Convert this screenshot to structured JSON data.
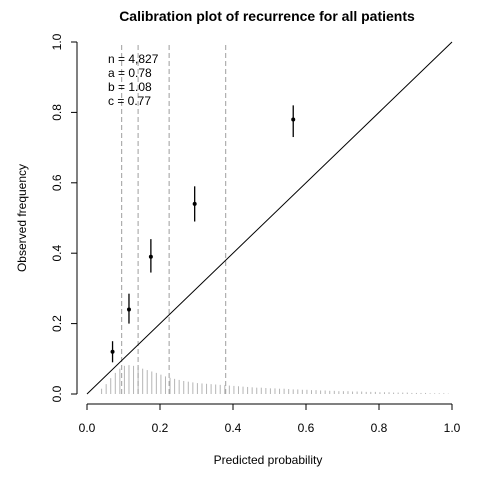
{
  "chart_data": {
    "type": "scatter",
    "title": "Calibration plot of recurrence for all patients",
    "xlabel": "Predicted probability",
    "ylabel": "Observed frequency",
    "xlim": [
      0,
      1
    ],
    "ylim": [
      0,
      1
    ],
    "x_ticks": [
      0.0,
      0.2,
      0.4,
      0.6,
      0.8,
      1.0
    ],
    "y_ticks": [
      0.0,
      0.2,
      0.4,
      0.6,
      0.8,
      1.0
    ],
    "x_tick_labels": [
      "0.0",
      "0.2",
      "0.4",
      "0.6",
      "0.8",
      "1.0"
    ],
    "y_tick_labels": [
      "0.0",
      "0.2",
      "0.4",
      "0.6",
      "0.8",
      "1.0"
    ],
    "annotations": [
      "n = 4,827",
      "a = 0.78",
      "b = 1.08",
      "c = 0.77"
    ],
    "points": [
      {
        "x": 0.07,
        "y": 0.12,
        "lo": 0.09,
        "hi": 0.15
      },
      {
        "x": 0.115,
        "y": 0.24,
        "lo": 0.2,
        "hi": 0.285
      },
      {
        "x": 0.175,
        "y": 0.39,
        "lo": 0.345,
        "hi": 0.44
      },
      {
        "x": 0.295,
        "y": 0.54,
        "lo": 0.49,
        "hi": 0.59
      },
      {
        "x": 0.565,
        "y": 0.78,
        "lo": 0.73,
        "hi": 0.82
      }
    ],
    "reference_line": {
      "from": [
        0,
        0
      ],
      "to": [
        1,
        1
      ]
    },
    "cutoff_lines_x": [
      0.095,
      0.14,
      0.225,
      0.38
    ],
    "histogram": {
      "bin_width": 0.0125,
      "x_start": 0.04,
      "heights": [
        0.015,
        0.028,
        0.045,
        0.06,
        0.072,
        0.08,
        0.082,
        0.08,
        0.076,
        0.072,
        0.068,
        0.064,
        0.06,
        0.055,
        0.05,
        0.046,
        0.043,
        0.04,
        0.037,
        0.035,
        0.033,
        0.031,
        0.03,
        0.029,
        0.028,
        0.027,
        0.026,
        0.025,
        0.024,
        0.023,
        0.022,
        0.021,
        0.02,
        0.019,
        0.018,
        0.018,
        0.017,
        0.016,
        0.016,
        0.015,
        0.015,
        0.014,
        0.013,
        0.013,
        0.012,
        0.012,
        0.011,
        0.011,
        0.01,
        0.01,
        0.009,
        0.009,
        0.008,
        0.008,
        0.008,
        0.007,
        0.007,
        0.007,
        0.006,
        0.006,
        0.006,
        0.005,
        0.005,
        0.005,
        0.004,
        0.004,
        0.004,
        0.004,
        0.003,
        0.003,
        0.003,
        0.003,
        0.002,
        0.002,
        0.002,
        0.002,
        0.001
      ]
    },
    "grid": false,
    "colors": {
      "points": "#000000",
      "reference_line": "#000000",
      "cutoff_lines": "#9e9e9e",
      "histogram": "#b5b5b5",
      "axes": "#000000"
    }
  }
}
